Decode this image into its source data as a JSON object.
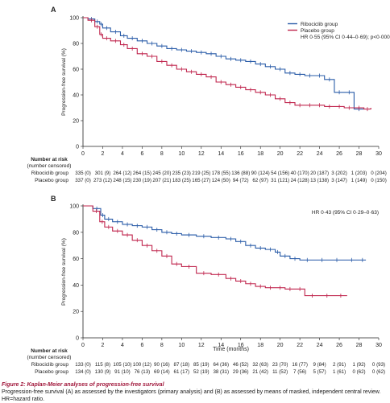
{
  "figure": {
    "caption_title": "Figure 2: Kaplan-Meier analyses of progression-free survival",
    "caption_text": "Progression-free survival (A) as assessed by the investigators (primary analysis) and (B) as assessed by means of masked, independent central review. HR=hazard ratio."
  },
  "colors": {
    "ribociclib": "#2a5ca8",
    "placebo": "#c0264e",
    "axis": "#222222"
  },
  "chart_data": [
    {
      "panel": "A",
      "type": "line",
      "ylabel": "Progression-free survival (%)",
      "xlabel": "",
      "xlim": [
        0,
        30
      ],
      "ylim": [
        0,
        100
      ],
      "xticks": [
        0,
        2,
        4,
        6,
        8,
        10,
        12,
        14,
        16,
        18,
        20,
        22,
        24,
        26,
        28,
        30
      ],
      "yticks": [
        0,
        20,
        40,
        60,
        80,
        100
      ],
      "legend_position": "top-right",
      "annotation": "HR 0·55 (95% CI 0·44–0·69); p<0·0001",
      "series": [
        {
          "name": "Ribociclib group",
          "color": "#2a5ca8",
          "x": [
            0,
            0.5,
            1.2,
            1.7,
            2.0,
            2.8,
            3.8,
            4.5,
            5.5,
            6.5,
            7.5,
            8.5,
            9.5,
            10.5,
            11.5,
            12.5,
            13.5,
            14.5,
            15.5,
            16.5,
            17.5,
            18.5,
            19.5,
            20.5,
            21.5,
            22.5,
            23.5,
            24.5,
            25.5,
            26.5,
            27.5,
            28.5
          ],
          "y": [
            100,
            99,
            97,
            95,
            92,
            89,
            86,
            84,
            82,
            80,
            78,
            76,
            75,
            74,
            73,
            72,
            70,
            68,
            67,
            66,
            64,
            62,
            60,
            57,
            56,
            55,
            55,
            52,
            42,
            42,
            29,
            29
          ]
        },
        {
          "name": "Placebo group",
          "color": "#c0264e",
          "x": [
            0,
            0.5,
            1.2,
            1.7,
            2.0,
            2.8,
            3.8,
            4.5,
            5.5,
            6.5,
            7.5,
            8.5,
            9.5,
            10.5,
            11.5,
            12.5,
            13.5,
            14.5,
            15.5,
            16.5,
            17.5,
            18.5,
            19.5,
            20.5,
            21.5,
            22.5,
            23.5,
            24.5,
            25.5,
            26.5,
            27.5,
            28.5,
            29.2
          ],
          "y": [
            100,
            98,
            93,
            87,
            84,
            82,
            79,
            76,
            72,
            70,
            66,
            63,
            60,
            58,
            56,
            54,
            50,
            48,
            46,
            44,
            42,
            40,
            37,
            34,
            32,
            32,
            32,
            31,
            31,
            30,
            30,
            29,
            30
          ]
        }
      ],
      "risk_table": {
        "heading": "Number at risk",
        "subheading": "(number censored)",
        "rows": [
          {
            "label": "Ribociclib group",
            "values": [
              "335 (0)",
              "301 (9)",
              "264 (12)",
              "264 (15)",
              "245 (20)",
              "235 (23)",
              "219 (25)",
              "178 (55)",
              "136 (88)",
              "90 (124)",
              "54 (156)",
              "40 (170)",
              "20 (187)",
              "3 (202)",
              "1 (203)",
              "0 (204)"
            ]
          },
          {
            "label": "Placebo group",
            "values": [
              "337 (0)",
              "273 (12)",
              "248 (15)",
              "230 (19)",
              "207 (21)",
              "183 (25)",
              "165 (27)",
              "124 (50)",
              "94 (72)",
              "62 (97)",
              "31 (121)",
              "24 (128)",
              "13 (138)",
              "3 (147)",
              "1 (149)",
              "0 (150)"
            ]
          }
        ]
      }
    },
    {
      "panel": "B",
      "type": "line",
      "ylabel": "Progression-free survival (%)",
      "xlabel": "Time (months)",
      "xlim": [
        0,
        30
      ],
      "ylim": [
        0,
        100
      ],
      "xticks": [
        0,
        2,
        4,
        6,
        8,
        10,
        12,
        14,
        16,
        18,
        20,
        22,
        24,
        26,
        28,
        30
      ],
      "yticks": [
        0,
        20,
        40,
        60,
        80,
        100
      ],
      "annotation": "HR 0·43 (95% CI 0·29–0·63)",
      "series": [
        {
          "name": "Ribociclib group",
          "color": "#2a5ca8",
          "x": [
            0,
            1.0,
            1.8,
            2.2,
            3.0,
            4.0,
            5.0,
            6.0,
            7.0,
            8.0,
            9.0,
            10.0,
            11.5,
            13.0,
            14.5,
            15.5,
            16.5,
            17.5,
            18.5,
            19.5,
            20.0,
            21.0,
            22.0,
            23.5,
            25.0,
            26.5,
            28.0,
            28.7
          ],
          "y": [
            100,
            98,
            93,
            90,
            88,
            86,
            85,
            84,
            82,
            80,
            79,
            78,
            77,
            76,
            75,
            73,
            70,
            68,
            67,
            65,
            62,
            60,
            59,
            59,
            59,
            59,
            59,
            59
          ]
        },
        {
          "name": "Placebo group",
          "color": "#c0264e",
          "x": [
            0,
            1.0,
            1.7,
            2.2,
            3.0,
            4.0,
            5.0,
            6.0,
            7.0,
            8.0,
            9.0,
            10.0,
            11.5,
            13.0,
            14.5,
            15.5,
            16.5,
            17.5,
            18.5,
            19.5,
            20.5,
            21.5,
            22.5,
            24.0,
            25.5,
            26.8
          ],
          "y": [
            100,
            96,
            88,
            84,
            81,
            78,
            74,
            70,
            66,
            62,
            56,
            54,
            49,
            48,
            45,
            43,
            41,
            39,
            38,
            38,
            37,
            37,
            32,
            32,
            32,
            32
          ]
        }
      ],
      "risk_table": {
        "heading": "Number at risk",
        "subheading": "(number censored)",
        "rows": [
          {
            "label": "Ribociclib group",
            "values": [
              "133 (0)",
              "115 (8)",
              "105 (10)",
              "100 (12)",
              "90 (16)",
              "87 (18)",
              "85 (19)",
              "64 (36)",
              "46 (52)",
              "32 (63)",
              "23 (70)",
              "16 (77)",
              "9 (84)",
              "2 (91)",
              "1 (92)",
              "0 (93)"
            ]
          },
          {
            "label": "Placebo group",
            "values": [
              "134 (0)",
              "130 (9)",
              "91 (10)",
              "76 (13)",
              "69 (14)",
              "61 (17)",
              "52 (19)",
              "38 (31)",
              "29 (36)",
              "21 (42)",
              "11 (52)",
              "7 (56)",
              "5 (57)",
              "1 (61)",
              "0 (62)",
              "0 (62)"
            ]
          }
        ]
      }
    }
  ]
}
